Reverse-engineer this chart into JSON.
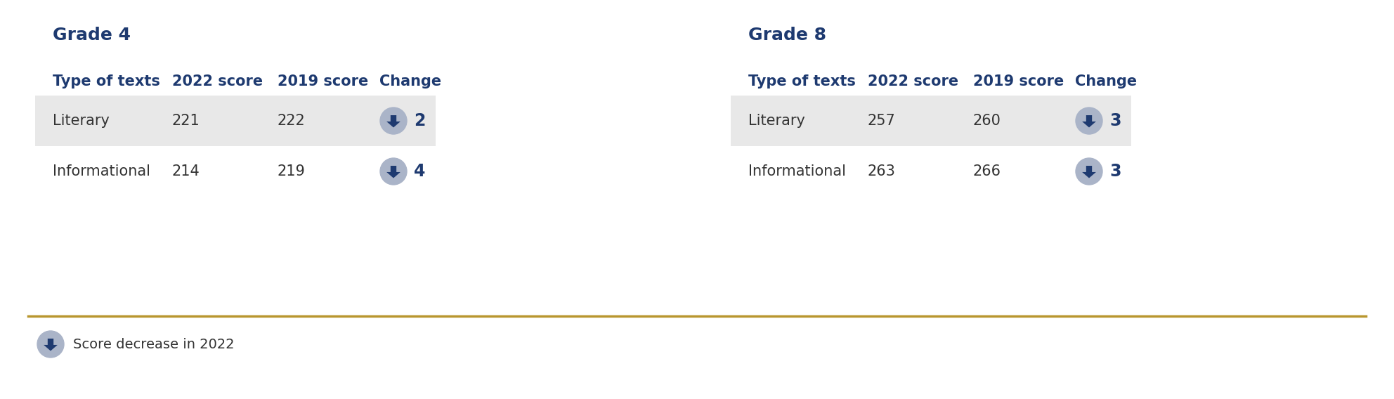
{
  "background_color": "#ffffff",
  "divider_color": "#b8962e",
  "grade4": {
    "title": "Grade 4",
    "columns": [
      "Type of texts",
      "2022 score",
      "2019 score",
      "Change"
    ],
    "rows": [
      {
        "type": "Literary",
        "score2022": 221,
        "score2019": 222,
        "change": 2,
        "shaded": true
      },
      {
        "type": "Informational",
        "score2022": 214,
        "score2019": 219,
        "change": 4,
        "shaded": false
      }
    ]
  },
  "grade8": {
    "title": "Grade 8",
    "columns": [
      "Type of texts",
      "2022 score",
      "2019 score",
      "Change"
    ],
    "rows": [
      {
        "type": "Literary",
        "score2022": 257,
        "score2019": 260,
        "change": 3,
        "shaded": true
      },
      {
        "type": "Informational",
        "score2022": 263,
        "score2019": 266,
        "change": 3,
        "shaded": false
      }
    ]
  },
  "legend_text": "Score decrease in 2022",
  "header_color": "#1e3a70",
  "title_color": "#1e3a70",
  "data_color": "#333333",
  "change_color": "#1e3a70",
  "shaded_row_color": "#e8e8e8",
  "arrow_circle_color": "#aab4c8",
  "arrow_fill_color": "#1e3a70",
  "title_fontsize": 18,
  "header_fontsize": 15,
  "data_fontsize": 15,
  "change_fontsize": 17,
  "legend_fontsize": 14
}
